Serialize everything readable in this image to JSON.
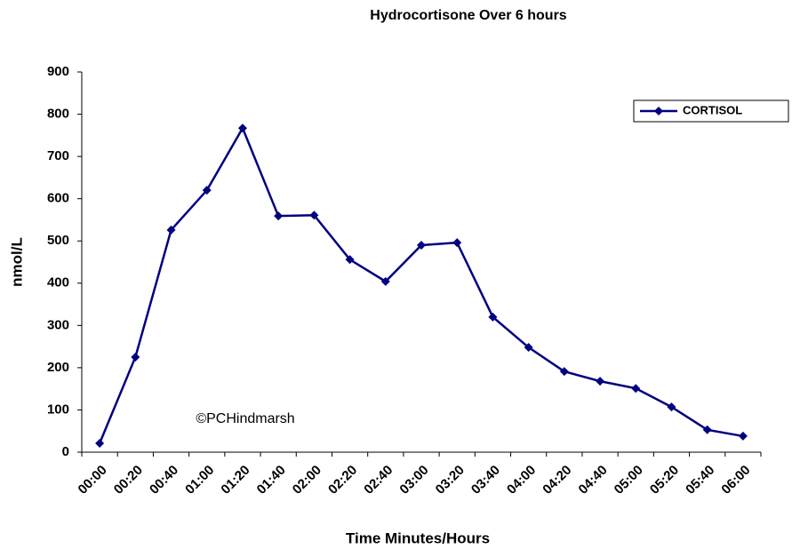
{
  "chart_data": {
    "type": "line",
    "title": "Hydrocortisone Over 6 hours",
    "x_label": "Time Minutes/Hours",
    "y_label": "nmol/L",
    "annotation": "©PCHindmarsh",
    "categories": [
      "00:00",
      "00:20",
      "00:40",
      "01:00",
      "01:20",
      "01:40",
      "02:00",
      "02:20",
      "02:40",
      "03:00",
      "03:20",
      "03:40",
      "04:00",
      "04:20",
      "04:40",
      "05:00",
      "05:20",
      "05:40",
      "06:00"
    ],
    "series": [
      {
        "name": "CORTISOL",
        "color": "#000080",
        "values": [
          21,
          225,
          526,
          620,
          767,
          559,
          561,
          456,
          404,
          490,
          496,
          320,
          248,
          191,
          168,
          151,
          107,
          53,
          38
        ]
      }
    ],
    "ylim": [
      0,
      900
    ],
    "yticks": [
      0,
      100,
      200,
      300,
      400,
      500,
      600,
      700,
      800,
      900
    ],
    "legend": "right"
  }
}
